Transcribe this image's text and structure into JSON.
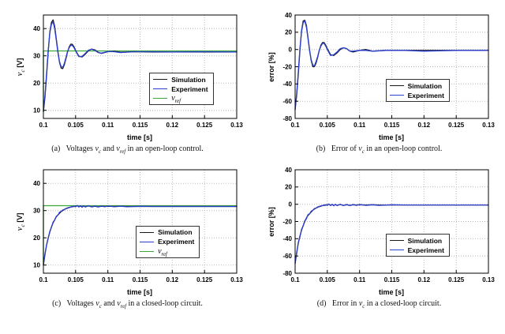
{
  "page": {
    "background": "#ffffff"
  },
  "colors": {
    "simulation": "#1a1a1a",
    "experiment": "#2b3fd0",
    "vref": "#3aa83a",
    "grid": "#b9b9b9",
    "axis": "#000000"
  },
  "chart_data": [
    {
      "id": "a",
      "type": "line",
      "xlabel": "time [s]",
      "ylabel_segments": [
        {
          "t": "v",
          "i": true
        },
        {
          "t": "c",
          "i": true,
          "sub": true
        },
        {
          "t": " [V]",
          "b": true
        }
      ],
      "xlim": [
        0.1,
        0.13
      ],
      "ylim": [
        7,
        45
      ],
      "xticks": [
        0.1,
        0.105,
        0.11,
        0.115,
        0.12,
        0.125,
        0.13
      ],
      "xtick_labels": [
        "0.1",
        "0.105",
        "0.11",
        "0.115",
        "0.12",
        "0.125",
        "0.13"
      ],
      "yticks": [
        10,
        20,
        30,
        40
      ],
      "ytick_labels": [
        "10",
        "20",
        "30",
        "40"
      ],
      "grid": true,
      "x": [
        0.1,
        0.10025,
        0.1005,
        0.10075,
        0.101,
        0.10125,
        0.1015,
        0.10175,
        0.102,
        0.10225,
        0.1025,
        0.10275,
        0.103,
        0.10325,
        0.1035,
        0.10375,
        0.104,
        0.10425,
        0.1045,
        0.10475,
        0.105,
        0.1055,
        0.106,
        0.1065,
        0.107,
        0.1075,
        0.108,
        0.1085,
        0.109,
        0.11,
        0.111,
        0.112,
        0.114,
        0.117,
        0.12,
        0.125,
        0.13
      ],
      "series": [
        {
          "name": "v_ref",
          "color": "#3aa83a",
          "x": [
            0.1,
            0.1,
            0.13
          ],
          "y": [
            9.5,
            31.8,
            31.8
          ]
        },
        {
          "name": "Simulation",
          "color": "#1a1a1a",
          "y": [
            9.5,
            14.8,
            23.0,
            31.6,
            38.9,
            42.3,
            43.2,
            40.8,
            36.3,
            31.6,
            27.6,
            25.5,
            25.3,
            26.7,
            29.0,
            31.4,
            33.3,
            34.3,
            34.2,
            33.3,
            32.0,
            29.9,
            29.6,
            30.6,
            31.9,
            32.5,
            32.2,
            31.3,
            30.9,
            31.5,
            31.7,
            31.3,
            31.5,
            31.4,
            31.4,
            31.4,
            31.4
          ]
        },
        {
          "name": "Experiment",
          "color": "#2b3fd0",
          "y": [
            9.8,
            15.5,
            23.8,
            32.0,
            38.5,
            41.6,
            42.5,
            40.0,
            35.8,
            31.2,
            27.9,
            26.0,
            25.8,
            27.2,
            29.4,
            31.6,
            33.0,
            33.9,
            33.8,
            33.0,
            31.8,
            29.7,
            29.8,
            30.9,
            32.1,
            32.4,
            32.0,
            31.2,
            31.0,
            31.6,
            31.5,
            31.2,
            31.5,
            31.5,
            31.4,
            31.5,
            31.4
          ]
        }
      ],
      "legend": {
        "pos": [
          0.55,
          0.56
        ],
        "entries": [
          {
            "series": 1,
            "segments": [
              {
                "t": "Simulation",
                "b": true
              }
            ]
          },
          {
            "series": 2,
            "segments": [
              {
                "t": "Experiment",
                "b": true
              }
            ]
          },
          {
            "series": 0,
            "segments": [
              {
                "t": "v",
                "i": true
              },
              {
                "t": "ref",
                "i": true,
                "sub": true
              }
            ]
          }
        ]
      },
      "caption_segments": [
        {
          "t": "(a)  Voltages "
        },
        {
          "t": "v",
          "i": true
        },
        {
          "t": "c",
          "i": true,
          "sub": true
        },
        {
          "t": " and "
        },
        {
          "t": "v",
          "i": true
        },
        {
          "t": "ref",
          "i": true,
          "sub": true
        },
        {
          "t": " in an open-loop control."
        }
      ]
    },
    {
      "id": "b",
      "type": "line",
      "xlabel": "time [s]",
      "ylabel_segments": [
        {
          "t": "error [%]",
          "b": true
        }
      ],
      "xlim": [
        0.1,
        0.13
      ],
      "ylim": [
        -80,
        40
      ],
      "xticks": [
        0.1,
        0.105,
        0.11,
        0.115,
        0.12,
        0.125,
        0.13
      ],
      "xtick_labels": [
        "0.1",
        "0.105",
        "0.11",
        "0.115",
        "0.12",
        "0.125",
        "0.13"
      ],
      "yticks": [
        -80,
        -60,
        -40,
        -20,
        0,
        20,
        40
      ],
      "ytick_labels": [
        "-80",
        "-60",
        "-40",
        "-20",
        "0",
        "20",
        "40"
      ],
      "grid": true,
      "x": [
        0.1,
        0.10025,
        0.1005,
        0.10075,
        0.101,
        0.10125,
        0.1015,
        0.10175,
        0.102,
        0.10225,
        0.1025,
        0.10275,
        0.103,
        0.10325,
        0.1035,
        0.10375,
        0.104,
        0.10425,
        0.1045,
        0.10475,
        0.105,
        0.1055,
        0.106,
        0.1065,
        0.107,
        0.1075,
        0.108,
        0.1085,
        0.109,
        0.11,
        0.111,
        0.112,
        0.114,
        0.117,
        0.12,
        0.125,
        0.13
      ],
      "series": [
        {
          "name": "Simulation",
          "color": "#1a1a1a",
          "y": [
            -70,
            -53,
            -28,
            -1,
            22,
            33,
            34,
            28,
            14,
            -1,
            -13,
            -20,
            -20,
            -16,
            -9,
            -1,
            5,
            8,
            8,
            5,
            1,
            -6,
            -7,
            -4,
            0,
            2,
            1,
            -2,
            -3,
            -1,
            0,
            -2,
            -1,
            -1,
            -1,
            -1,
            -1
          ]
        },
        {
          "name": "Experiment",
          "color": "#2b3fd0",
          "y": [
            -69,
            -51,
            -25,
            1,
            21,
            31,
            33,
            26,
            13,
            -2,
            -12,
            -18,
            -19,
            -14,
            -8,
            -1,
            4,
            7,
            7,
            4,
            0,
            -7,
            -6,
            -3,
            1,
            2,
            1,
            -2,
            -2,
            -1,
            -1,
            -2,
            -1,
            -1,
            -2,
            -1,
            -1
          ]
        }
      ],
      "legend": {
        "pos": [
          0.47,
          0.62
        ],
        "entries": [
          {
            "series": 0,
            "segments": [
              {
                "t": "Simulation",
                "b": true
              }
            ]
          },
          {
            "series": 1,
            "segments": [
              {
                "t": "Experiment",
                "b": true
              }
            ]
          }
        ]
      },
      "caption_segments": [
        {
          "t": "(b)  Error of "
        },
        {
          "t": "v",
          "i": true
        },
        {
          "t": "c",
          "i": true,
          "sub": true
        },
        {
          "t": " in an open-loop control."
        }
      ]
    },
    {
      "id": "c",
      "type": "line",
      "xlabel": "time [s]",
      "ylabel_segments": [
        {
          "t": "v",
          "i": true
        },
        {
          "t": "c",
          "i": true,
          "sub": true
        },
        {
          "t": " [V]",
          "b": true
        }
      ],
      "xlim": [
        0.1,
        0.13
      ],
      "ylim": [
        7,
        45
      ],
      "xticks": [
        0.1,
        0.105,
        0.11,
        0.115,
        0.12,
        0.125,
        0.13
      ],
      "xtick_labels": [
        "0.1",
        "0.105",
        "0.11",
        "0.115",
        "0.12",
        "0.125",
        "0.13"
      ],
      "yticks": [
        10,
        20,
        30,
        40
      ],
      "ytick_labels": [
        "10",
        "20",
        "30",
        "40"
      ],
      "grid": true,
      "x": [
        0.1,
        0.10025,
        0.1005,
        0.10075,
        0.101,
        0.10125,
        0.1015,
        0.10175,
        0.102,
        0.10225,
        0.1025,
        0.10275,
        0.103,
        0.10325,
        0.1035,
        0.10375,
        0.104,
        0.10425,
        0.1045,
        0.10475,
        0.105,
        0.10525,
        0.1055,
        0.10575,
        0.106,
        0.10625,
        0.1065,
        0.107,
        0.1075,
        0.108,
        0.1085,
        0.109,
        0.1095,
        0.11,
        0.111,
        0.112,
        0.113,
        0.115,
        0.117,
        0.12,
        0.125,
        0.13
      ],
      "series": [
        {
          "name": "v_ref",
          "color": "#3aa83a",
          "x": [
            0.1,
            0.1,
            0.13
          ],
          "y": [
            10,
            31.8,
            31.8
          ]
        },
        {
          "name": "Simulation",
          "color": "#1a1a1a",
          "y": [
            10,
            14.1,
            17.4,
            20.0,
            22.2,
            24.0,
            25.5,
            26.6,
            27.7,
            28.4,
            29.0,
            29.6,
            30.0,
            30.4,
            30.7,
            30.9,
            31.1,
            31.3,
            31.4,
            31.5,
            31.6,
            31.8,
            31.4,
            31.7,
            31.3,
            31.7,
            31.4,
            31.7,
            31.4,
            31.6,
            31.4,
            31.6,
            31.5,
            31.6,
            31.5,
            31.6,
            31.5,
            31.5,
            31.5,
            31.5,
            31.5,
            31.5
          ]
        },
        {
          "name": "Experiment",
          "color": "#2b3fd0",
          "y": [
            10.2,
            13.8,
            17.6,
            19.8,
            22.5,
            23.8,
            25.8,
            26.5,
            27.9,
            28.3,
            29.4,
            29.7,
            30.2,
            30.4,
            30.8,
            31.0,
            31.2,
            31.3,
            31.5,
            31.6,
            31.4,
            31.9,
            31.3,
            31.8,
            31.2,
            31.8,
            31.3,
            31.8,
            31.3,
            31.7,
            31.3,
            31.7,
            31.4,
            31.7,
            31.4,
            31.6,
            31.4,
            31.6,
            31.5,
            31.5,
            31.5,
            31.5
          ]
        }
      ],
      "legend": {
        "pos": [
          0.48,
          0.54
        ],
        "entries": [
          {
            "series": 1,
            "segments": [
              {
                "t": "Simulation",
                "b": true
              }
            ]
          },
          {
            "series": 2,
            "segments": [
              {
                "t": "Experiment",
                "b": true
              }
            ]
          },
          {
            "series": 0,
            "segments": [
              {
                "t": "v",
                "i": true
              },
              {
                "t": "ref",
                "i": true,
                "sub": true
              }
            ]
          }
        ]
      },
      "caption_segments": [
        {
          "t": "(c)  Voltages "
        },
        {
          "t": "v",
          "i": true
        },
        {
          "t": "c",
          "i": true,
          "sub": true
        },
        {
          "t": " and "
        },
        {
          "t": "v",
          "i": true
        },
        {
          "t": "ref",
          "i": true,
          "sub": true
        },
        {
          "t": " in a closed-loop circuit."
        }
      ]
    },
    {
      "id": "d",
      "type": "line",
      "xlabel": "time [s]",
      "ylabel_segments": [
        {
          "t": "error [%]",
          "b": true
        }
      ],
      "xlim": [
        0.1,
        0.13
      ],
      "ylim": [
        -80,
        40
      ],
      "xticks": [
        0.1,
        0.105,
        0.11,
        0.115,
        0.12,
        0.125,
        0.13
      ],
      "xtick_labels": [
        "0.1",
        "0.105",
        "0.11",
        "0.115",
        "0.12",
        "0.125",
        "0.13"
      ],
      "yticks": [
        -80,
        -60,
        -40,
        -20,
        0,
        20,
        40
      ],
      "ytick_labels": [
        "-80",
        "-60",
        "-40",
        "-20",
        "0",
        "20",
        "40"
      ],
      "grid": true,
      "x": [
        0.1,
        0.10025,
        0.1005,
        0.10075,
        0.101,
        0.10125,
        0.1015,
        0.10175,
        0.102,
        0.10225,
        0.1025,
        0.10275,
        0.103,
        0.10325,
        0.1035,
        0.10375,
        0.104,
        0.10425,
        0.1045,
        0.10475,
        0.105,
        0.10525,
        0.1055,
        0.10575,
        0.106,
        0.10625,
        0.1065,
        0.107,
        0.1075,
        0.108,
        0.1085,
        0.109,
        0.1095,
        0.11,
        0.111,
        0.112,
        0.113,
        0.115,
        0.117,
        0.12,
        0.125,
        0.13
      ],
      "series": [
        {
          "name": "Simulation",
          "color": "#1a1a1a",
          "y": [
            -69,
            -56,
            -45,
            -37,
            -30,
            -25,
            -20,
            -16,
            -13,
            -11,
            -9,
            -7,
            -5.5,
            -4.5,
            -3.5,
            -2.8,
            -2.2,
            -1.6,
            -1.3,
            -1,
            -0.6,
            0,
            -1.3,
            -0.3,
            -1.6,
            -0.3,
            -1.3,
            -0.3,
            -1.3,
            -0.6,
            -1.3,
            -0.6,
            -0.9,
            -0.6,
            -0.9,
            -0.6,
            -0.9,
            -0.9,
            -0.9,
            -0.9,
            -0.9,
            -0.9
          ]
        },
        {
          "name": "Experiment",
          "color": "#2b3fd0",
          "y": [
            -68,
            -57,
            -44,
            -38,
            -29,
            -25,
            -19,
            -17,
            -12,
            -11,
            -8,
            -7,
            -5,
            -4.4,
            -3.1,
            -2.5,
            -1.9,
            -1.6,
            -0.9,
            -0.6,
            -1.3,
            0.3,
            -1.6,
            0,
            -1.9,
            0,
            -1.6,
            0,
            -1.6,
            -0.3,
            -1.6,
            -0.3,
            -1.3,
            -0.3,
            -1.3,
            -0.6,
            -1.3,
            -0.6,
            -0.9,
            -0.9,
            -0.9,
            -0.9
          ]
        }
      ],
      "legend": {
        "pos": [
          0.47,
          0.62
        ],
        "entries": [
          {
            "series": 0,
            "segments": [
              {
                "t": "Simulation",
                "b": true
              }
            ]
          },
          {
            "series": 1,
            "segments": [
              {
                "t": "Experiment",
                "b": true
              }
            ]
          }
        ]
      },
      "caption_segments": [
        {
          "t": "(d)  Error in "
        },
        {
          "t": "v",
          "i": true
        },
        {
          "t": "c",
          "i": true,
          "sub": true
        },
        {
          "t": " in a closed-loop circuit."
        }
      ]
    }
  ]
}
